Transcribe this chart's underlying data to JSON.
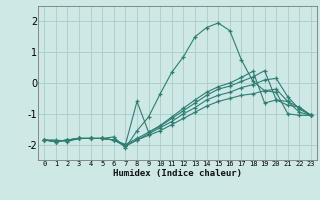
{
  "background_color": "#cde8e5",
  "grid_color": "#aaccca",
  "line_color": "#2e7d72",
  "xlabel": "Humidex (Indice chaleur)",
  "xlim": [
    -0.5,
    23.5
  ],
  "ylim": [
    -2.5,
    2.5
  ],
  "yticks": [
    -2,
    -1,
    0,
    1,
    2
  ],
  "xticks": [
    0,
    1,
    2,
    3,
    4,
    5,
    6,
    7,
    8,
    9,
    10,
    11,
    12,
    13,
    14,
    15,
    16,
    17,
    18,
    19,
    20,
    21,
    22,
    23
  ],
  "lines": [
    {
      "x": [
        0,
        1,
        2,
        3,
        4,
        5,
        6,
        7,
        8,
        9,
        10,
        11,
        12,
        13,
        14,
        15,
        16,
        17,
        18,
        19,
        20,
        21,
        22,
        23
      ],
      "y": [
        -1.85,
        -1.85,
        -1.9,
        -1.8,
        -1.8,
        -1.8,
        -1.75,
        -2.1,
        -1.55,
        -1.1,
        -0.35,
        0.35,
        0.85,
        1.5,
        1.8,
        1.95,
        1.7,
        0.75,
        0.05,
        -0.25,
        -0.3,
        -1.0,
        -1.05,
        -1.05
      ]
    },
    {
      "x": [
        0,
        1,
        2,
        3,
        4,
        5,
        6,
        7,
        8,
        9,
        10,
        11,
        12,
        13,
        14,
        15,
        16,
        17,
        18,
        19,
        20,
        21,
        22,
        23
      ],
      "y": [
        -1.85,
        -1.9,
        -1.85,
        -1.8,
        -1.8,
        -1.8,
        -1.85,
        -2.05,
        -1.85,
        -1.7,
        -1.55,
        -1.35,
        -1.15,
        -0.95,
        -0.75,
        -0.6,
        -0.5,
        -0.4,
        -0.35,
        -0.25,
        -0.2,
        -0.6,
        -0.95,
        -1.05
      ]
    },
    {
      "x": [
        0,
        1,
        2,
        3,
        4,
        5,
        6,
        7,
        8,
        9,
        10,
        11,
        12,
        13,
        14,
        15,
        16,
        17,
        18,
        19,
        20,
        21,
        22,
        23
      ],
      "y": [
        -1.85,
        -1.9,
        -1.85,
        -1.8,
        -1.8,
        -1.8,
        -1.85,
        -2.05,
        -1.85,
        -1.65,
        -1.45,
        -1.25,
        -1.0,
        -0.8,
        -0.55,
        -0.4,
        -0.3,
        -0.15,
        -0.05,
        0.1,
        0.15,
        -0.45,
        -0.85,
        -1.05
      ]
    },
    {
      "x": [
        0,
        1,
        2,
        3,
        4,
        5,
        6,
        7,
        8,
        9,
        10,
        11,
        12,
        13,
        14,
        15,
        16,
        17,
        18,
        19,
        20,
        21,
        22,
        23
      ],
      "y": [
        -1.85,
        -1.9,
        -1.85,
        -1.8,
        -1.8,
        -1.8,
        -1.85,
        -2.0,
        -1.8,
        -1.6,
        -1.4,
        -1.15,
        -0.9,
        -0.65,
        -0.4,
        -0.2,
        -0.1,
        0.05,
        0.2,
        0.4,
        -0.55,
        -0.6,
        -0.8,
        -1.05
      ]
    },
    {
      "x": [
        0,
        1,
        2,
        3,
        4,
        5,
        6,
        7,
        8,
        9,
        10,
        11,
        12,
        13,
        14,
        15,
        16,
        17,
        18,
        19,
        20,
        21,
        22,
        23
      ],
      "y": [
        -1.85,
        -1.9,
        -1.85,
        -1.8,
        -1.8,
        -1.8,
        -1.85,
        -2.0,
        -0.6,
        -1.6,
        -1.38,
        -1.1,
        -0.82,
        -0.55,
        -0.3,
        -0.12,
        0.0,
        0.18,
        0.38,
        -0.65,
        -0.55,
        -0.72,
        -0.78,
        -1.05
      ]
    }
  ]
}
